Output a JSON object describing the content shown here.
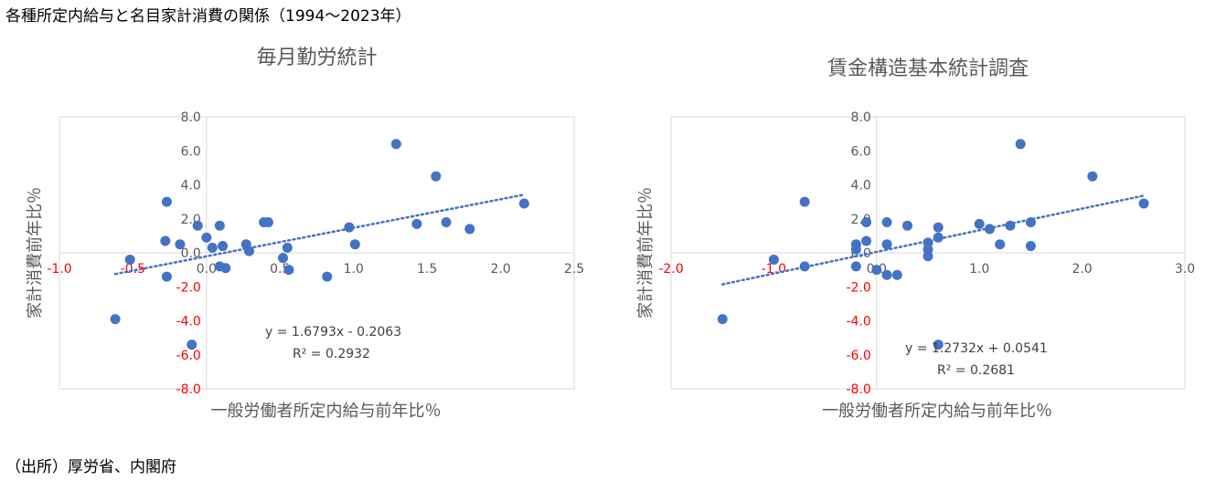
{
  "page": {
    "title": "各種所定内給与と名目家計消費の関係（1994～2023年）",
    "source": "（出所）厚労省、内閣府"
  },
  "chart_data": [
    {
      "type": "scatter",
      "title": "毎月勤労統計",
      "xlabel": "一般労働者所定内給与前年比％",
      "ylabel": "家計消費前年比％",
      "xlim": [
        -1.0,
        2.5
      ],
      "ylim": [
        -8.0,
        8.0
      ],
      "x_ticks": [
        "-1.0",
        "-0.5",
        "0.0",
        "0.5",
        "1.0",
        "1.5",
        "2.0",
        "2.5"
      ],
      "y_ticks": [
        "-8.0",
        "-6.0",
        "-4.0",
        "-2.0",
        "0.0",
        "2.0",
        "4.0",
        "6.0",
        "8.0"
      ],
      "marker_color": "#4472c4",
      "negative_label_color": "#ff0000",
      "trendline": {
        "slope": 1.6793,
        "intercept": -0.2063,
        "style": "dotted",
        "x_range": [
          -0.62,
          2.16
        ]
      },
      "equation_label": "y = 1.6793x  - 0.2063",
      "r2_label": "R² = 0.2932",
      "points": [
        {
          "x": -0.62,
          "y": -3.9
        },
        {
          "x": -0.52,
          "y": -0.4
        },
        {
          "x": -0.27,
          "y": 3.0
        },
        {
          "x": -0.27,
          "y": -1.4
        },
        {
          "x": -0.28,
          "y": 0.7
        },
        {
          "x": -0.18,
          "y": 0.5
        },
        {
          "x": -0.1,
          "y": -5.4
        },
        {
          "x": -0.06,
          "y": 1.6
        },
        {
          "x": 0.0,
          "y": 0.9
        },
        {
          "x": 0.04,
          "y": 0.3
        },
        {
          "x": 0.09,
          "y": 1.6
        },
        {
          "x": 0.09,
          "y": -0.8
        },
        {
          "x": 0.11,
          "y": 0.4
        },
        {
          "x": 0.13,
          "y": -0.9
        },
        {
          "x": 0.27,
          "y": 0.5
        },
        {
          "x": 0.29,
          "y": 0.1
        },
        {
          "x": 0.39,
          "y": 1.8
        },
        {
          "x": 0.42,
          "y": 1.8
        },
        {
          "x": 0.52,
          "y": -0.3
        },
        {
          "x": 0.55,
          "y": 0.3
        },
        {
          "x": 0.56,
          "y": -1.0
        },
        {
          "x": 0.82,
          "y": -1.4
        },
        {
          "x": 0.97,
          "y": 1.5
        },
        {
          "x": 1.01,
          "y": 0.5
        },
        {
          "x": 1.29,
          "y": 6.4
        },
        {
          "x": 1.43,
          "y": 1.7
        },
        {
          "x": 1.56,
          "y": 4.5
        },
        {
          "x": 1.63,
          "y": 1.8
        },
        {
          "x": 1.79,
          "y": 1.4
        },
        {
          "x": 2.16,
          "y": 2.9
        }
      ]
    },
    {
      "type": "scatter",
      "title": "賃金構造基本統計調査",
      "xlabel": "一般労働者所定内給与前年比％",
      "ylabel": "家計消費前年比％",
      "xlim": [
        -2.0,
        3.0
      ],
      "ylim": [
        -8.0,
        8.0
      ],
      "x_ticks": [
        "-2.0",
        "-1.0",
        "0.0",
        "1.0",
        "2.0",
        "3.0"
      ],
      "y_ticks": [
        "-8.0",
        "-6.0",
        "-4.0",
        "-2.0",
        "0.0",
        "2.0",
        "4.0",
        "6.0",
        "8.0"
      ],
      "marker_color": "#4472c4",
      "negative_label_color": "#ff0000",
      "trendline": {
        "slope": 1.2732,
        "intercept": 0.0541,
        "style": "dotted",
        "x_range": [
          -1.5,
          2.6
        ]
      },
      "equation_label": "y = 1.2732x  + 0.0541",
      "r2_label": "R² = 0.2681",
      "points": [
        {
          "x": -1.5,
          "y": -3.9
        },
        {
          "x": -1.0,
          "y": -0.4
        },
        {
          "x": -0.7,
          "y": 3.0
        },
        {
          "x": -0.7,
          "y": -0.8
        },
        {
          "x": -0.2,
          "y": 0.5
        },
        {
          "x": -0.2,
          "y": 0.2
        },
        {
          "x": -0.2,
          "y": -0.8
        },
        {
          "x": -0.1,
          "y": 1.8
        },
        {
          "x": -0.1,
          "y": 0.7
        },
        {
          "x": 0.0,
          "y": -1.0
        },
        {
          "x": 0.1,
          "y": 1.8
        },
        {
          "x": 0.1,
          "y": 0.5
        },
        {
          "x": 0.1,
          "y": -1.3
        },
        {
          "x": 0.2,
          "y": -1.3
        },
        {
          "x": 0.3,
          "y": 1.6
        },
        {
          "x": 0.5,
          "y": 0.6
        },
        {
          "x": 0.5,
          "y": 0.2
        },
        {
          "x": 0.5,
          "y": -0.2
        },
        {
          "x": 0.6,
          "y": 1.5
        },
        {
          "x": 0.6,
          "y": 0.9
        },
        {
          "x": 0.6,
          "y": -5.4
        },
        {
          "x": 1.0,
          "y": 1.7
        },
        {
          "x": 1.1,
          "y": 1.4
        },
        {
          "x": 1.2,
          "y": 0.5
        },
        {
          "x": 1.3,
          "y": 1.6
        },
        {
          "x": 1.4,
          "y": 6.4
        },
        {
          "x": 1.5,
          "y": 1.8
        },
        {
          "x": 1.5,
          "y": 0.4
        },
        {
          "x": 2.1,
          "y": 4.5
        },
        {
          "x": 2.6,
          "y": 2.9
        }
      ]
    }
  ]
}
